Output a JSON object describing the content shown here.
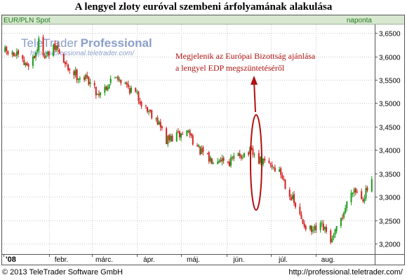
{
  "title": "A lengyel zloty euróval szembeni árfolyamának alakulása",
  "instrument": "EUR/PLN Spot",
  "frequency": "naponta",
  "watermark": {
    "brand_part1": "TeleTrader",
    "brand_part2": "Professional",
    "url": "http://professional.teletrader.com/"
  },
  "annotation": {
    "line1": "Megjelenik az Európai Bizottság ajánlása",
    "line2": "a lengyel EDP megszüntetéséről"
  },
  "footer": {
    "copyright": "© 2013 TeleTrader Software GmbH",
    "url": "http://professional.teletrader.com/"
  },
  "colors": {
    "up_candle": "#1a9a1a",
    "down_candle": "#d42020",
    "annotation": "#b01010",
    "header_bg": "#d8e8d0",
    "header_text": "#1a7a1a",
    "watermark": "#8a9ec8"
  },
  "chart_data": {
    "type": "candlestick",
    "instrument": "EUR/PLN Spot",
    "frequency": "naponta",
    "x_tick_labels": [
      "'08",
      "febr.",
      "márc.",
      "ápr.",
      "máj.",
      "jún.",
      "júl.",
      "aug."
    ],
    "y_tick_labels": [
      "3,6500",
      "3,6000",
      "3,5500",
      "3,5000",
      "3,4500",
      "3,4000",
      "3,3500",
      "3,3000",
      "3,2500",
      "3,2000"
    ],
    "ylim": [
      3.178,
      3.668
    ],
    "grid": true,
    "legend": "none",
    "anchors": [
      {
        "date": "2008-01-02",
        "close": 3.61
      },
      {
        "date": "2008-01-10",
        "close": 3.6
      },
      {
        "date": "2008-01-16",
        "close": 3.58
      },
      {
        "date": "2008-01-22",
        "close": 3.6
      },
      {
        "date": "2008-01-25",
        "close": 3.63
      },
      {
        "date": "2008-01-30",
        "close": 3.6
      },
      {
        "date": "2008-02-06",
        "close": 3.62
      },
      {
        "date": "2008-02-12",
        "close": 3.58
      },
      {
        "date": "2008-02-20",
        "close": 3.56
      },
      {
        "date": "2008-02-28",
        "close": 3.55
      },
      {
        "date": "2008-03-05",
        "close": 3.52
      },
      {
        "date": "2008-03-12",
        "close": 3.54
      },
      {
        "date": "2008-03-18",
        "close": 3.56
      },
      {
        "date": "2008-03-24",
        "close": 3.54
      },
      {
        "date": "2008-03-31",
        "close": 3.52
      },
      {
        "date": "2008-04-07",
        "close": 3.49
      },
      {
        "date": "2008-04-14",
        "close": 3.47
      },
      {
        "date": "2008-04-21",
        "close": 3.42
      },
      {
        "date": "2008-04-28",
        "close": 3.43
      },
      {
        "date": "2008-05-06",
        "close": 3.44
      },
      {
        "date": "2008-05-13",
        "close": 3.4
      },
      {
        "date": "2008-05-20",
        "close": 3.38
      },
      {
        "date": "2008-05-27",
        "close": 3.385
      },
      {
        "date": "2008-06-03",
        "close": 3.375
      },
      {
        "date": "2008-06-10",
        "close": 3.39
      },
      {
        "date": "2008-06-17",
        "close": 3.395
      },
      {
        "date": "2008-06-24",
        "close": 3.375
      },
      {
        "date": "2008-07-01",
        "close": 3.37
      },
      {
        "date": "2008-07-08",
        "close": 3.35
      },
      {
        "date": "2008-07-15",
        "close": 3.3
      },
      {
        "date": "2008-07-22",
        "close": 3.25
      },
      {
        "date": "2008-07-29",
        "close": 3.225
      },
      {
        "date": "2008-08-05",
        "close": 3.235
      },
      {
        "date": "2008-08-12",
        "close": 3.205
      },
      {
        "date": "2008-08-19",
        "close": 3.26
      },
      {
        "date": "2008-08-26",
        "close": 3.32
      },
      {
        "date": "2008-09-02",
        "close": 3.3
      },
      {
        "date": "2008-09-08",
        "close": 3.33
      }
    ]
  }
}
